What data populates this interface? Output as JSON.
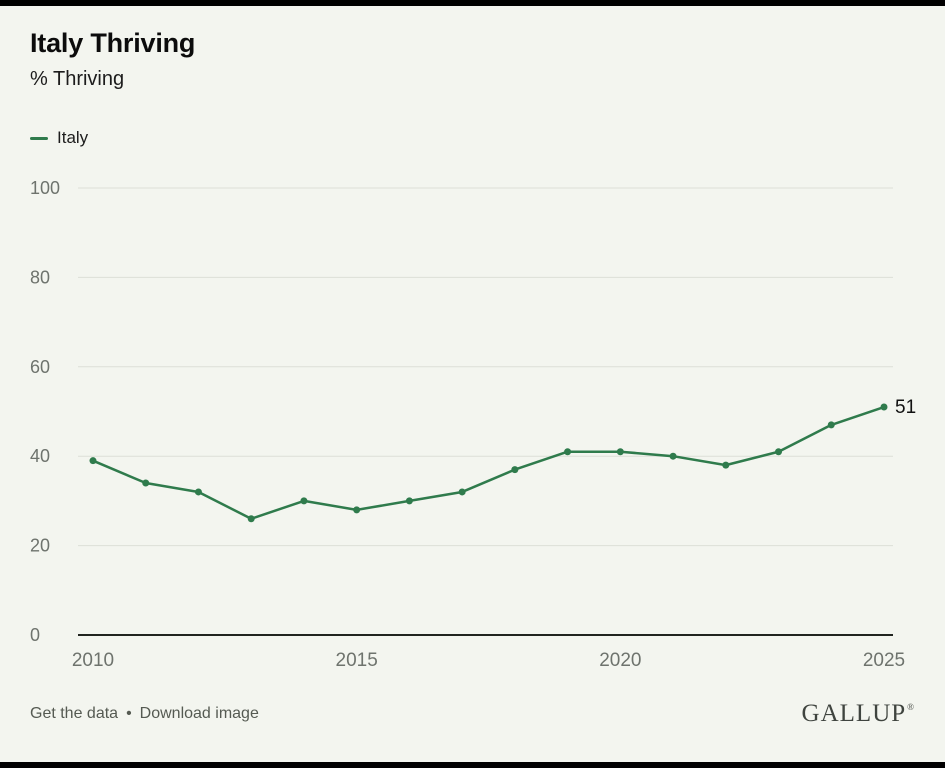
{
  "header": {
    "title": "Italy Thriving",
    "subtitle": "% Thriving"
  },
  "legend": {
    "label": "Italy",
    "color": "#2f7b4c"
  },
  "chart_data": {
    "type": "line",
    "title": "Italy Thriving",
    "subtitle": "% Thriving",
    "x": [
      2010,
      2011,
      2012,
      2013,
      2014,
      2015,
      2016,
      2017,
      2018,
      2019,
      2020,
      2021,
      2022,
      2023,
      2024,
      2025
    ],
    "series": [
      {
        "name": "Italy",
        "color": "#2f7b4c",
        "values": [
          39,
          34,
          32,
          26,
          30,
          28,
          30,
          32,
          37,
          41,
          41,
          40,
          38,
          41,
          47,
          51
        ]
      }
    ],
    "xticks": [
      2010,
      2015,
      2020,
      2025
    ],
    "yticks": [
      0,
      20,
      40,
      60,
      80,
      100
    ],
    "xlim": [
      2010,
      2025
    ],
    "ylim": [
      0,
      100
    ],
    "xlabel": "",
    "ylabel": "",
    "grid": true,
    "legend_position": "top-left",
    "end_label": "51"
  },
  "footer": {
    "links": [
      {
        "label": "Get the data"
      },
      {
        "label": "Download image"
      }
    ],
    "separator": "•",
    "logo": "GALLUP",
    "logo_mark": "®"
  },
  "colors": {
    "background": "#f3f5ef",
    "line": "#2f7b4c",
    "grid": "#dcdfd7",
    "axis": "#20241f",
    "tick_text": "#6e736d",
    "label_text": "#111111",
    "footer_text": "#555a52",
    "logo_text": "#3f443f"
  }
}
